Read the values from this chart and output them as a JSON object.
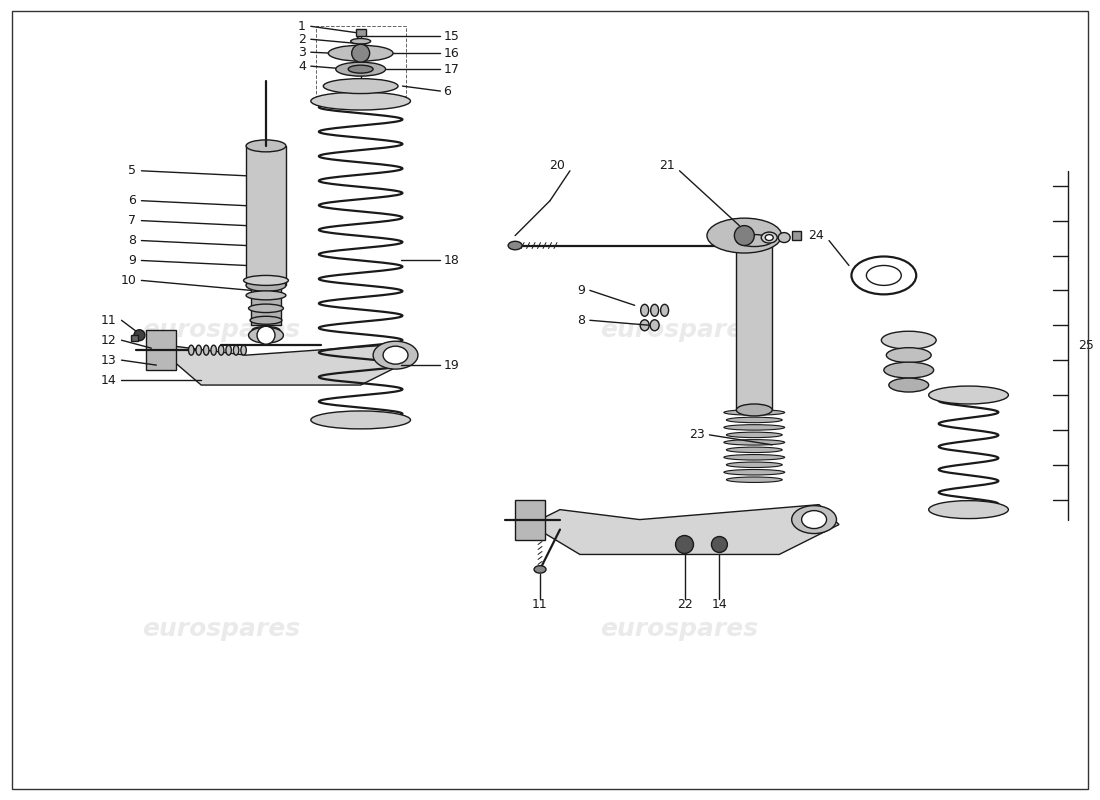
{
  "bg_color": "#ffffff",
  "watermark_text": "eurospares",
  "watermark_color": "#cccccc",
  "watermark_alpha": 0.4,
  "line_color": "#1a1a1a",
  "label_color": "#1a1a1a",
  "label_fontsize": 9,
  "fig_width": 11.0,
  "fig_height": 8.0,
  "dpi": 100
}
